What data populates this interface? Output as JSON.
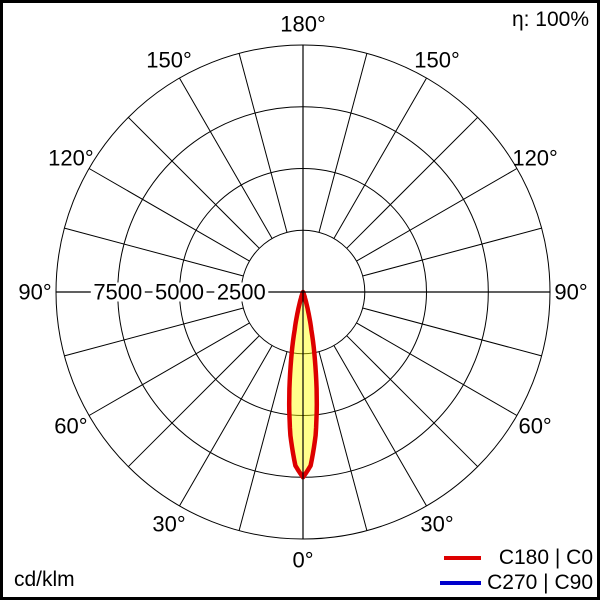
{
  "header": {
    "efficiency": "η: 100%"
  },
  "footer": {
    "unit": "cd/klm"
  },
  "legend": {
    "items": [
      {
        "label": "C180 | C0",
        "color": "#dd0000"
      },
      {
        "label": "C270 | C90",
        "color": "#0000cc"
      }
    ]
  },
  "chart_data": {
    "type": "polar",
    "subtype": "luminous-intensity-distribution",
    "unit": "cd/klm",
    "efficiency_percent": 100,
    "rmax": 10000,
    "radial_rings": [
      2500,
      5000,
      7500,
      10000
    ],
    "radial_ring_labels": [
      2500,
      5000,
      7500
    ],
    "angle_tick_step_deg": 15,
    "angle_label_step_deg": 30,
    "angle_labels_deg": [
      0,
      30,
      60,
      90,
      120,
      150,
      180
    ],
    "grid_color": "#000000",
    "series": [
      {
        "name": "C180 | C0",
        "color": "#dd0000",
        "fill": "rgba(255,255,0,0.45)",
        "line_width": 4.5,
        "symmetric": true,
        "gamma_deg": [
          0,
          2.5,
          5,
          7.5,
          10,
          12.5,
          15,
          17.5,
          20,
          22.5,
          25,
          30,
          45,
          60,
          75,
          90,
          105,
          120,
          135,
          150,
          165,
          180
        ],
        "values": [
          7500,
          7040,
          5830,
          4260,
          2740,
          1560,
          780,
          345,
          135,
          45,
          15,
          0,
          0,
          0,
          0,
          0,
          0,
          0,
          0,
          0,
          0,
          0
        ]
      },
      {
        "name": "C270 | C90",
        "color": "#0000cc",
        "fill": "none",
        "line_width": 3,
        "symmetric": true,
        "gamma_deg": [
          0,
          2.5,
          5,
          7.5,
          10,
          12.5,
          15,
          17.5,
          20,
          22.5,
          25,
          30,
          45,
          60,
          75,
          90,
          105,
          120,
          135,
          150,
          165,
          180
        ],
        "values": [
          7500,
          7040,
          5830,
          4260,
          2740,
          1560,
          780,
          345,
          135,
          45,
          15,
          0,
          0,
          0,
          0,
          0,
          0,
          0,
          0,
          0,
          0,
          0
        ]
      }
    ]
  }
}
